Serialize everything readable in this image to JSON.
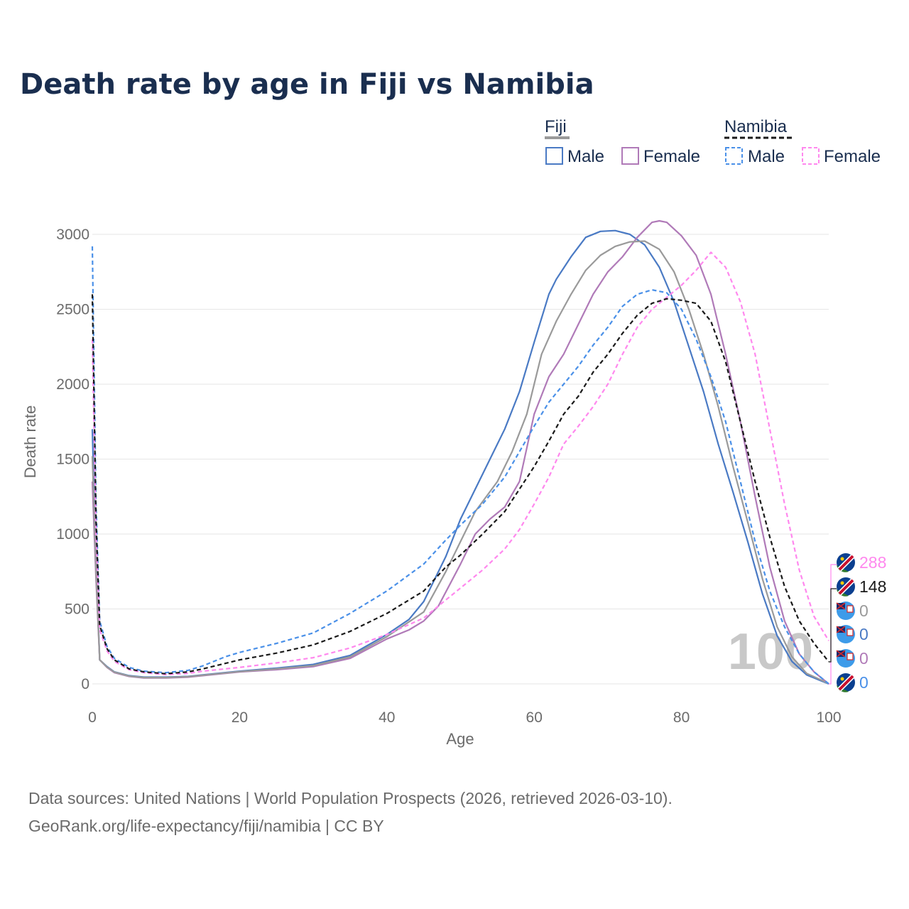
{
  "title": "Death rate by age in Fiji vs Namibia",
  "legend": {
    "group1": "Fiji",
    "group2": "Namibia",
    "male": "Male",
    "female": "Female"
  },
  "footer": {
    "line1": "Data sources: United Nations | World Population Prospects (2026, retrieved 2026-03-10).",
    "line2": "GeoRank.org/life-expectancy/fiji/namibia | CC BY"
  },
  "watermark": "100",
  "colors": {
    "title": "#1a2e4f",
    "fiji_male": "#4a7ac4",
    "fiji_female": "#b07ab8",
    "fiji_total": "#9a9a9a",
    "namibia_male": "#4a90e8",
    "namibia_female": "#ff88ee",
    "namibia_total": "#1a1a1a",
    "grid": "#e6e6e6"
  },
  "chart_data": {
    "type": "line",
    "xlabel": "Age",
    "ylabel": "Death rate",
    "xlim": [
      0,
      100
    ],
    "ylim": [
      0,
      3000
    ],
    "xticks": [
      0,
      20,
      40,
      60,
      80,
      100
    ],
    "yticks": [
      0,
      500,
      1000,
      1500,
      2000,
      2500,
      3000
    ],
    "grid": true,
    "series": [
      {
        "name": "Fiji Male",
        "country": "Fiji",
        "sex": "Male",
        "style": "solid",
        "color": "#4a7ac4",
        "points": [
          [
            0,
            1700
          ],
          [
            0.5,
            800
          ],
          [
            1,
            160
          ],
          [
            2,
            115
          ],
          [
            3,
            80
          ],
          [
            5,
            55
          ],
          [
            7,
            45
          ],
          [
            10,
            45
          ],
          [
            13,
            50
          ],
          [
            15,
            60
          ],
          [
            20,
            85
          ],
          [
            25,
            105
          ],
          [
            30,
            130
          ],
          [
            35,
            190
          ],
          [
            40,
            330
          ],
          [
            43,
            430
          ],
          [
            45,
            550
          ],
          [
            48,
            850
          ],
          [
            50,
            1100
          ],
          [
            53,
            1400
          ],
          [
            56,
            1700
          ],
          [
            58,
            1950
          ],
          [
            60,
            2280
          ],
          [
            62,
            2600
          ],
          [
            63,
            2700
          ],
          [
            65,
            2850
          ],
          [
            67,
            2980
          ],
          [
            69,
            3020
          ],
          [
            71,
            3025
          ],
          [
            73,
            3000
          ],
          [
            75,
            2930
          ],
          [
            77,
            2780
          ],
          [
            79,
            2550
          ],
          [
            81,
            2250
          ],
          [
            83,
            1950
          ],
          [
            85,
            1600
          ],
          [
            87,
            1280
          ],
          [
            89,
            950
          ],
          [
            91,
            600
          ],
          [
            93,
            320
          ],
          [
            95,
            150
          ],
          [
            97,
            60
          ],
          [
            99,
            20
          ],
          [
            100,
            0
          ]
        ],
        "end_value": "0"
      },
      {
        "name": "Fiji Female",
        "country": "Fiji",
        "sex": "Female",
        "style": "solid",
        "color": "#b07ab8",
        "points": [
          [
            0,
            1350
          ],
          [
            0.5,
            700
          ],
          [
            1,
            160
          ],
          [
            2,
            110
          ],
          [
            3,
            75
          ],
          [
            5,
            50
          ],
          [
            7,
            40
          ],
          [
            10,
            40
          ],
          [
            13,
            45
          ],
          [
            15,
            55
          ],
          [
            20,
            80
          ],
          [
            25,
            95
          ],
          [
            30,
            115
          ],
          [
            35,
            170
          ],
          [
            40,
            300
          ],
          [
            43,
            360
          ],
          [
            45,
            420
          ],
          [
            47,
            520
          ],
          [
            50,
            800
          ],
          [
            52,
            1000
          ],
          [
            54,
            1100
          ],
          [
            56,
            1180
          ],
          [
            58,
            1350
          ],
          [
            60,
            1800
          ],
          [
            62,
            2050
          ],
          [
            64,
            2200
          ],
          [
            66,
            2400
          ],
          [
            68,
            2600
          ],
          [
            70,
            2750
          ],
          [
            72,
            2850
          ],
          [
            74,
            2980
          ],
          [
            76,
            3080
          ],
          [
            77,
            3090
          ],
          [
            78,
            3080
          ],
          [
            80,
            2990
          ],
          [
            82,
            2860
          ],
          [
            84,
            2600
          ],
          [
            86,
            2200
          ],
          [
            88,
            1750
          ],
          [
            90,
            1250
          ],
          [
            92,
            780
          ],
          [
            94,
            420
          ],
          [
            96,
            200
          ],
          [
            98,
            80
          ],
          [
            100,
            0
          ]
        ],
        "end_value": "0"
      },
      {
        "name": "Fiji Total",
        "country": "Fiji",
        "sex": "Total",
        "style": "solid",
        "color": "#9a9a9a",
        "points": [
          [
            0,
            1520
          ],
          [
            0.5,
            750
          ],
          [
            1,
            160
          ],
          [
            2,
            112
          ],
          [
            3,
            78
          ],
          [
            5,
            52
          ],
          [
            7,
            42
          ],
          [
            10,
            42
          ],
          [
            13,
            48
          ],
          [
            15,
            58
          ],
          [
            20,
            82
          ],
          [
            25,
            100
          ],
          [
            30,
            122
          ],
          [
            35,
            180
          ],
          [
            40,
            315
          ],
          [
            45,
            480
          ],
          [
            48,
            750
          ],
          [
            50,
            950
          ],
          [
            52,
            1150
          ],
          [
            55,
            1350
          ],
          [
            57,
            1550
          ],
          [
            59,
            1800
          ],
          [
            61,
            2200
          ],
          [
            63,
            2420
          ],
          [
            65,
            2600
          ],
          [
            67,
            2760
          ],
          [
            69,
            2860
          ],
          [
            71,
            2920
          ],
          [
            73,
            2950
          ],
          [
            75,
            2955
          ],
          [
            77,
            2900
          ],
          [
            79,
            2750
          ],
          [
            81,
            2500
          ],
          [
            83,
            2200
          ],
          [
            85,
            1850
          ],
          [
            87,
            1450
          ],
          [
            89,
            1080
          ],
          [
            91,
            700
          ],
          [
            93,
            380
          ],
          [
            95,
            180
          ],
          [
            97,
            70
          ],
          [
            99,
            25
          ],
          [
            100,
            0
          ]
        ],
        "end_value": "0"
      },
      {
        "name": "Namibia Male",
        "country": "Namibia",
        "sex": "Male",
        "style": "dashed",
        "color": "#4a90e8",
        "points": [
          [
            0,
            2920
          ],
          [
            0.5,
            1200
          ],
          [
            1,
            420
          ],
          [
            2,
            250
          ],
          [
            3,
            170
          ],
          [
            5,
            110
          ],
          [
            7,
            85
          ],
          [
            10,
            75
          ],
          [
            13,
            90
          ],
          [
            15,
            120
          ],
          [
            18,
            180
          ],
          [
            20,
            210
          ],
          [
            25,
            270
          ],
          [
            30,
            340
          ],
          [
            35,
            470
          ],
          [
            40,
            620
          ],
          [
            45,
            800
          ],
          [
            48,
            960
          ],
          [
            50,
            1060
          ],
          [
            53,
            1200
          ],
          [
            56,
            1380
          ],
          [
            58,
            1550
          ],
          [
            60,
            1720
          ],
          [
            62,
            1880
          ],
          [
            64,
            2000
          ],
          [
            66,
            2120
          ],
          [
            68,
            2260
          ],
          [
            70,
            2380
          ],
          [
            72,
            2520
          ],
          [
            74,
            2600
          ],
          [
            76,
            2630
          ],
          [
            78,
            2610
          ],
          [
            80,
            2500
          ],
          [
            82,
            2300
          ],
          [
            84,
            2050
          ],
          [
            86,
            1750
          ],
          [
            88,
            1350
          ],
          [
            90,
            950
          ],
          [
            92,
            620
          ],
          [
            94,
            380
          ],
          [
            96,
            200
          ],
          [
            98,
            80
          ],
          [
            100,
            0
          ]
        ],
        "end_value": "0"
      },
      {
        "name": "Namibia Female",
        "country": "Namibia",
        "sex": "Female",
        "style": "dashed",
        "color": "#ff88ee",
        "points": [
          [
            0,
            2300
          ],
          [
            0.5,
            1000
          ],
          [
            1,
            360
          ],
          [
            2,
            220
          ],
          [
            3,
            150
          ],
          [
            5,
            95
          ],
          [
            7,
            75
          ],
          [
            10,
            62
          ],
          [
            13,
            70
          ],
          [
            15,
            85
          ],
          [
            20,
            110
          ],
          [
            25,
            140
          ],
          [
            30,
            175
          ],
          [
            35,
            240
          ],
          [
            40,
            330
          ],
          [
            45,
            440
          ],
          [
            48,
            560
          ],
          [
            50,
            640
          ],
          [
            53,
            760
          ],
          [
            56,
            900
          ],
          [
            58,
            1030
          ],
          [
            60,
            1200
          ],
          [
            62,
            1380
          ],
          [
            64,
            1600
          ],
          [
            66,
            1720
          ],
          [
            68,
            1850
          ],
          [
            70,
            2000
          ],
          [
            72,
            2200
          ],
          [
            74,
            2380
          ],
          [
            76,
            2500
          ],
          [
            78,
            2580
          ],
          [
            80,
            2660
          ],
          [
            82,
            2760
          ],
          [
            84,
            2880
          ],
          [
            86,
            2780
          ],
          [
            88,
            2550
          ],
          [
            90,
            2200
          ],
          [
            92,
            1700
          ],
          [
            94,
            1200
          ],
          [
            96,
            760
          ],
          [
            98,
            450
          ],
          [
            100,
            288
          ]
        ],
        "end_value": "288"
      },
      {
        "name": "Namibia Total",
        "country": "Namibia",
        "sex": "Total",
        "style": "dashed",
        "color": "#1a1a1a",
        "points": [
          [
            0,
            2600
          ],
          [
            0.5,
            1100
          ],
          [
            1,
            390
          ],
          [
            2,
            235
          ],
          [
            3,
            160
          ],
          [
            5,
            100
          ],
          [
            7,
            80
          ],
          [
            10,
            68
          ],
          [
            13,
            80
          ],
          [
            15,
            100
          ],
          [
            20,
            160
          ],
          [
            25,
            205
          ],
          [
            30,
            260
          ],
          [
            35,
            350
          ],
          [
            40,
            470
          ],
          [
            45,
            620
          ],
          [
            48,
            780
          ],
          [
            50,
            860
          ],
          [
            53,
            1000
          ],
          [
            56,
            1150
          ],
          [
            58,
            1300
          ],
          [
            60,
            1450
          ],
          [
            62,
            1620
          ],
          [
            64,
            1800
          ],
          [
            66,
            1920
          ],
          [
            68,
            2080
          ],
          [
            70,
            2200
          ],
          [
            72,
            2340
          ],
          [
            74,
            2460
          ],
          [
            76,
            2540
          ],
          [
            78,
            2570
          ],
          [
            80,
            2560
          ],
          [
            82,
            2540
          ],
          [
            84,
            2420
          ],
          [
            86,
            2150
          ],
          [
            88,
            1750
          ],
          [
            90,
            1350
          ],
          [
            92,
            980
          ],
          [
            94,
            650
          ],
          [
            96,
            420
          ],
          [
            98,
            270
          ],
          [
            100,
            148
          ]
        ],
        "end_value": "148"
      }
    ]
  }
}
